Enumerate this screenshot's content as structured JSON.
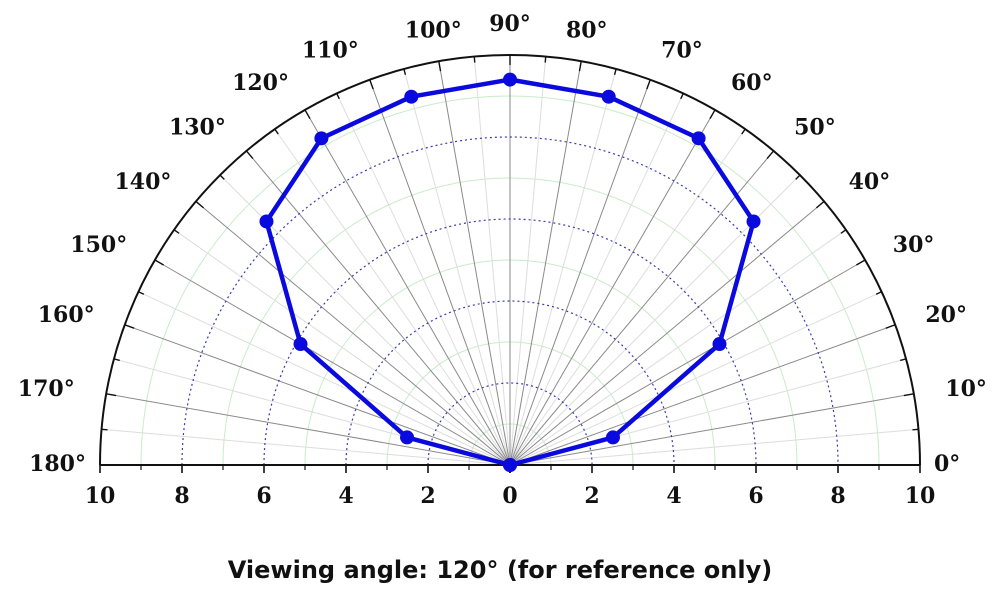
{
  "caption": "Viewing angle: 120° (for reference only)",
  "chart_data": {
    "type": "polar-half",
    "title": "",
    "theta_unit": "degrees",
    "theta_range": [
      0,
      180
    ],
    "radial_range": [
      0,
      10
    ],
    "angle_ticks": [
      0,
      10,
      20,
      30,
      40,
      50,
      60,
      70,
      80,
      90,
      100,
      110,
      120,
      130,
      140,
      150,
      160,
      170,
      180
    ],
    "angle_tick_labels": [
      "0°",
      "10°",
      "20°",
      "30°",
      "40°",
      "50°",
      "60°",
      "70°",
      "80°",
      "90°",
      "100°",
      "110°",
      "120°",
      "130°",
      "140°",
      "150°",
      "160°",
      "170°",
      "180°"
    ],
    "radial_ticks": [
      0,
      2,
      4,
      6,
      8,
      10
    ],
    "radial_tick_labels_left": [
      "10",
      "8",
      "6",
      "4",
      "2",
      "0"
    ],
    "radial_tick_labels_right": [
      "0",
      "2",
      "4",
      "6",
      "8",
      "10"
    ],
    "grid": true,
    "series": [
      {
        "color": "#0a0adf",
        "points": [
          {
            "theta": 0,
            "r": 0
          },
          {
            "theta": 15,
            "r": 2.6
          },
          {
            "theta": 30,
            "r": 5.9
          },
          {
            "theta": 45,
            "r": 8.4
          },
          {
            "theta": 60,
            "r": 9.2
          },
          {
            "theta": 75,
            "r": 9.3
          },
          {
            "theta": 90,
            "r": 9.4
          },
          {
            "theta": 105,
            "r": 9.3
          },
          {
            "theta": 120,
            "r": 9.2
          },
          {
            "theta": 135,
            "r": 8.4
          },
          {
            "theta": 150,
            "r": 5.9
          },
          {
            "theta": 165,
            "r": 2.6
          },
          {
            "theta": 180,
            "r": 0
          }
        ]
      }
    ]
  }
}
